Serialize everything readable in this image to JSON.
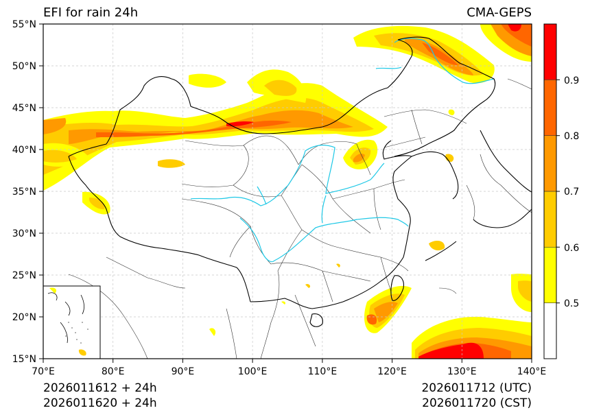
{
  "title": {
    "left": "EFI for rain 24h",
    "right": "CMA-GEPS"
  },
  "map": {
    "lon_range": [
      70,
      140
    ],
    "lat_range": [
      15,
      55
    ],
    "lon_ticks": [
      "70°E",
      "80°E",
      "90°E",
      "100°E",
      "110°E",
      "120°E",
      "130°E",
      "140°E"
    ],
    "lat_ticks": [
      "15°N",
      "20°N",
      "25°N",
      "30°N",
      "35°N",
      "40°N",
      "45°N",
      "50°N",
      "55°N"
    ],
    "gridlines": true
  },
  "colorbar": {
    "ticks": [
      "0.5",
      "0.6",
      "0.7",
      "0.8",
      "0.9"
    ],
    "bands": [
      "#ffffff",
      "#ffff00",
      "#ffcc00",
      "#ff9900",
      "#ff6600",
      "#ff0000"
    ]
  },
  "footer": {
    "left_line1": "2026011612 + 24h",
    "left_line2": "2026011620 + 24h",
    "right_line1": "2026011712 (UTC)",
    "right_line2": "2026011720 (CST)"
  }
}
